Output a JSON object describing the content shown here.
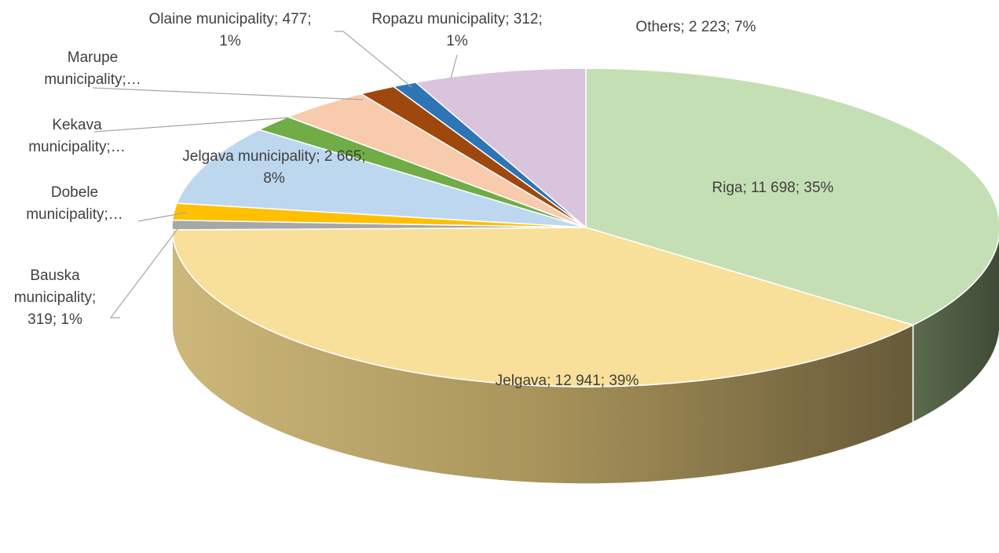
{
  "chart_data": {
    "type": "pie",
    "style": "3d",
    "legend": "none",
    "slices": [
      {
        "category": "Riga",
        "value": 11698,
        "value_label": "11 698",
        "percent_label": "35%",
        "color": "#c5dfb4"
      },
      {
        "category": "Jelgava",
        "value": 12941,
        "value_label": "12 941",
        "percent_label": "39%",
        "color": "#f8e09a"
      },
      {
        "category": "Bauska municipality",
        "value": 319,
        "value_label": "319",
        "percent_label": "1%",
        "color": "#a7a7a7"
      },
      {
        "category": "Dobele municipality",
        "value": 560,
        "value_label": "",
        "percent_label": "",
        "color": "#ffc000"
      },
      {
        "category": "Jelgava municipality",
        "value": 2665,
        "value_label": "2 665",
        "percent_label": "8%",
        "color": "#bdd7ee"
      },
      {
        "category": "Kekava municipality",
        "value": 560,
        "value_label": "",
        "percent_label": "",
        "color": "#70ad47"
      },
      {
        "category": "Marupe municipality",
        "value": 1200,
        "value_label": "",
        "percent_label": "",
        "color": "#f8cbad"
      },
      {
        "category": "Olaine municipality",
        "value": 477,
        "value_label": "477",
        "percent_label": "1%",
        "color": "#9e480e"
      },
      {
        "category": "Ropazu municipality",
        "value": 312,
        "value_label": "312",
        "percent_label": "1%",
        "color": "#2e75b6"
      },
      {
        "category": "Others",
        "value": 2223,
        "value_label": "2 223",
        "percent_label": "7%",
        "color": "#d9c3dd"
      }
    ],
    "labels": [
      {
        "slice": "Riga",
        "lines": [
          "Riga; 11 698; 35%"
        ]
      },
      {
        "slice": "Jelgava",
        "lines": [
          "Jelgava; 12 941; 39%"
        ]
      },
      {
        "slice": "Bauska municipality",
        "lines": [
          "Bauska",
          "municipality;",
          "319; 1%"
        ]
      },
      {
        "slice": "Dobele municipality",
        "lines": [
          "Dobele",
          "municipality;…"
        ]
      },
      {
        "slice": "Jelgava municipality",
        "lines": [
          "Jelgava municipality; 2 665;",
          "8%"
        ]
      },
      {
        "slice": "Kekava municipality",
        "lines": [
          "Kekava",
          "municipality;…"
        ]
      },
      {
        "slice": "Marupe municipality",
        "lines": [
          "Marupe",
          "municipality;…"
        ]
      },
      {
        "slice": "Olaine municipality",
        "lines": [
          "Olaine municipality; 477;",
          "1%"
        ]
      },
      {
        "slice": "Ropazu municipality",
        "lines": [
          "Ropazu municipality; 312;",
          "1%"
        ]
      },
      {
        "slice": "Others",
        "lines": [
          "Others; 2 223; 7%"
        ]
      }
    ]
  }
}
